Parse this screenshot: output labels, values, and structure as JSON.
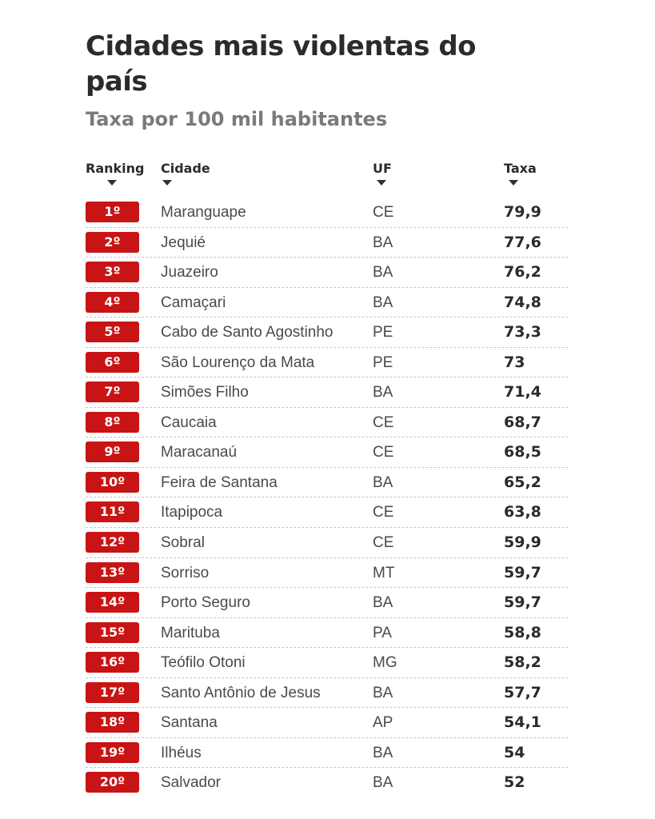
{
  "title": "Cidades mais violentas do país",
  "subtitle": "Taxa por 100 mil habitantes",
  "columns": {
    "ranking": "Ranking",
    "city": "Cidade",
    "uf": "UF",
    "rate": "Taxa"
  },
  "colors": {
    "badge": "#c81414",
    "title": "#2b2b2b",
    "subtitle": "#7a7a7a"
  },
  "chart_data": {
    "type": "table",
    "title": "Cidades mais violentas do país",
    "subtitle": "Taxa por 100 mil habitantes",
    "columns": [
      "Ranking",
      "Cidade",
      "UF",
      "Taxa"
    ],
    "rows": [
      {
        "rank": "1º",
        "city": "Maranguape",
        "uf": "CE",
        "rate": "79,9"
      },
      {
        "rank": "2º",
        "city": "Jequié",
        "uf": "BA",
        "rate": "77,6"
      },
      {
        "rank": "3º",
        "city": "Juazeiro",
        "uf": "BA",
        "rate": "76,2"
      },
      {
        "rank": "4º",
        "city": "Camaçari",
        "uf": "BA",
        "rate": "74,8"
      },
      {
        "rank": "5º",
        "city": "Cabo de Santo Agostinho",
        "uf": "PE",
        "rate": "73,3"
      },
      {
        "rank": "6º",
        "city": "São Lourenço da Mata",
        "uf": "PE",
        "rate": "73"
      },
      {
        "rank": "7º",
        "city": "Simões Filho",
        "uf": "BA",
        "rate": "71,4"
      },
      {
        "rank": "8º",
        "city": "Caucaia",
        "uf": "CE",
        "rate": "68,7"
      },
      {
        "rank": "9º",
        "city": "Maracanaú",
        "uf": "CE",
        "rate": "68,5"
      },
      {
        "rank": "10º",
        "city": "Feira de Santana",
        "uf": "BA",
        "rate": "65,2"
      },
      {
        "rank": "11º",
        "city": "Itapipoca",
        "uf": "CE",
        "rate": "63,8"
      },
      {
        "rank": "12º",
        "city": "Sobral",
        "uf": "CE",
        "rate": "59,9"
      },
      {
        "rank": "13º",
        "city": "Sorriso",
        "uf": "MT",
        "rate": "59,7"
      },
      {
        "rank": "14º",
        "city": "Porto Seguro",
        "uf": "BA",
        "rate": "59,7"
      },
      {
        "rank": "15º",
        "city": "Marituba",
        "uf": "PA",
        "rate": "58,8"
      },
      {
        "rank": "16º",
        "city": "Teófilo Otoni",
        "uf": "MG",
        "rate": "58,2"
      },
      {
        "rank": "17º",
        "city": "Santo Antônio de Jesus",
        "uf": "BA",
        "rate": "57,7"
      },
      {
        "rank": "18º",
        "city": "Santana",
        "uf": "AP",
        "rate": "54,1"
      },
      {
        "rank": "19º",
        "city": "Ilhéus",
        "uf": "BA",
        "rate": "54"
      },
      {
        "rank": "20º",
        "city": "Salvador",
        "uf": "BA",
        "rate": "52"
      }
    ]
  }
}
